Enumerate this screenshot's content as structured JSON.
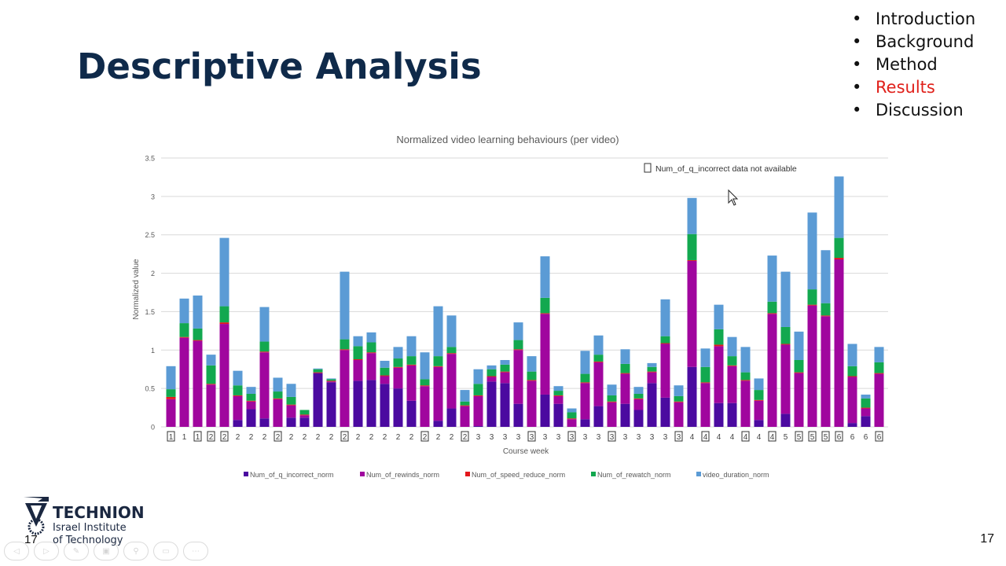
{
  "slide": {
    "title": "Descriptive Analysis",
    "nav": [
      {
        "label": "Introduction",
        "active": false
      },
      {
        "label": "Background",
        "active": false
      },
      {
        "label": "Method",
        "active": false
      },
      {
        "label": "Results",
        "active": true
      },
      {
        "label": "Discussion",
        "active": false
      }
    ],
    "bullet": "•",
    "slide_number": "17",
    "logo": {
      "name": "TECHNION",
      "line1": "Israel Institute",
      "line2": "of Technology"
    },
    "controls": [
      "previous-icon",
      "next-icon",
      "pen-icon",
      "slides-icon",
      "zoom-icon",
      "subtitles-icon",
      "more-icon"
    ],
    "active_color": "#e0201a"
  },
  "chart_data": {
    "type": "bar",
    "stacked": true,
    "title": "Normalized video learning behaviours (per video)",
    "xlabel": "Course week",
    "ylabel": "Normalized value",
    "ylim": [
      0,
      3.5
    ],
    "yticks": [
      "0",
      "0.5",
      "1",
      "1.5",
      "2",
      "2.5",
      "3",
      "3.5"
    ],
    "grid": true,
    "legend_position": "bottom",
    "annotation": "Num_of_q_incorrect data not available",
    "categories": [
      "1",
      "1",
      "1",
      "2",
      "2",
      "2",
      "2",
      "2",
      "2",
      "2",
      "2",
      "2",
      "2",
      "2",
      "2",
      "2",
      "2",
      "2",
      "2",
      "2",
      "2",
      "2",
      "2",
      "3",
      "3",
      "3",
      "3",
      "3",
      "3",
      "3",
      "3",
      "3",
      "3",
      "3",
      "3",
      "3",
      "3",
      "3",
      "3",
      "4",
      "4",
      "4",
      "4",
      "4",
      "4",
      "4",
      "5",
      "5",
      "5",
      "5",
      "6",
      "6",
      "6",
      "6"
    ],
    "boxed": [
      true,
      false,
      true,
      true,
      true,
      false,
      false,
      false,
      true,
      false,
      false,
      false,
      false,
      true,
      false,
      false,
      false,
      false,
      false,
      true,
      false,
      false,
      true,
      false,
      false,
      false,
      false,
      true,
      false,
      false,
      true,
      false,
      false,
      true,
      false,
      false,
      false,
      false,
      true,
      false,
      true,
      false,
      false,
      true,
      false,
      true,
      false,
      true,
      true,
      true,
      true,
      false,
      false,
      true
    ],
    "series": [
      {
        "name": "Num_of_q_incorrect_norm",
        "color": "#4b0aa0",
        "values": [
          0,
          0,
          0,
          0,
          0,
          0.09,
          0.23,
          0.11,
          0,
          0.12,
          0.12,
          0.7,
          0.58,
          0,
          0.6,
          0.61,
          0.56,
          0.5,
          0.34,
          0,
          0.08,
          0.24,
          0,
          0.01,
          0.59,
          0.57,
          0.3,
          0,
          0.42,
          0.3,
          0,
          0.1,
          0.27,
          0,
          0.3,
          0.22,
          0.57,
          0.38,
          0,
          0.78,
          0,
          0.31,
          0.31,
          0,
          0.09,
          0,
          0.17,
          0,
          0,
          0,
          0,
          0.05,
          0.14,
          0
        ]
      },
      {
        "name": "Num_of_rewinds_norm",
        "color": "#a0069e",
        "values": [
          0.36,
          1.16,
          1.12,
          0.55,
          1.34,
          0.31,
          0.1,
          0.86,
          0.36,
          0.16,
          0.03,
          0,
          0.01,
          1.0,
          0.27,
          0.35,
          0.1,
          0.27,
          0.46,
          0.53,
          0.7,
          0.71,
          0.27,
          0.39,
          0.06,
          0.14,
          0.7,
          0.6,
          1.05,
          0.1,
          0.1,
          0.47,
          0.57,
          0.32,
          0.39,
          0.14,
          0.14,
          0.7,
          0.32,
          1.38,
          0.57,
          0.74,
          0.48,
          0.6,
          0.25,
          1.47,
          0.9,
          0.7,
          1.58,
          1.44,
          2.18,
          0.6,
          0.1,
          0.69
        ]
      },
      {
        "name": "Num_of_speed_reduce_norm",
        "color": "#e3171c",
        "values": [
          0.03,
          0.01,
          0.01,
          0.01,
          0.02,
          0.01,
          0.01,
          0.01,
          0.01,
          0.01,
          0.01,
          0.01,
          0.01,
          0.01,
          0.01,
          0.01,
          0.01,
          0.01,
          0.01,
          0.01,
          0.01,
          0.01,
          0.01,
          0.01,
          0.01,
          0.01,
          0.01,
          0.01,
          0.01,
          0.01,
          0.01,
          0.01,
          0.01,
          0.01,
          0.01,
          0.01,
          0.01,
          0.01,
          0.01,
          0.01,
          0.01,
          0.02,
          0.01,
          0.01,
          0.01,
          0.01,
          0.01,
          0.01,
          0.01,
          0.01,
          0.02,
          0.01,
          0.01,
          0.01
        ]
      },
      {
        "name": "Num_of_rewatch_norm",
        "color": "#12a84f",
        "values": [
          0.1,
          0.18,
          0.15,
          0.24,
          0.21,
          0.13,
          0.09,
          0.13,
          0.09,
          0.1,
          0.06,
          0.04,
          0.02,
          0.13,
          0.17,
          0.13,
          0.1,
          0.11,
          0.11,
          0.08,
          0.13,
          0.08,
          0.05,
          0.15,
          0.09,
          0.09,
          0.12,
          0.11,
          0.2,
          0.06,
          0.08,
          0.11,
          0.09,
          0.08,
          0.12,
          0.06,
          0.06,
          0.09,
          0.07,
          0.34,
          0.2,
          0.2,
          0.12,
          0.1,
          0.13,
          0.15,
          0.22,
          0.16,
          0.2,
          0.16,
          0.26,
          0.13,
          0.12,
          0.14
        ]
      },
      {
        "name": "video_duration_norm",
        "color": "#5b9bd5",
        "values": [
          0.3,
          0.32,
          0.43,
          0.14,
          0.89,
          0.19,
          0.09,
          0.45,
          0.18,
          0.17,
          0.0,
          0.01,
          0.01,
          0.88,
          0.13,
          0.13,
          0.09,
          0.15,
          0.26,
          0.35,
          0.65,
          0.41,
          0.15,
          0.19,
          0.05,
          0.06,
          0.23,
          0.2,
          0.54,
          0.06,
          0.05,
          0.3,
          0.25,
          0.14,
          0.19,
          0.09,
          0.05,
          0.48,
          0.14,
          0.47,
          0.24,
          0.32,
          0.25,
          0.33,
          0.15,
          0.6,
          0.72,
          0.37,
          1.0,
          0.69,
          0.8,
          0.29,
          0.05,
          0.2
        ]
      }
    ]
  }
}
